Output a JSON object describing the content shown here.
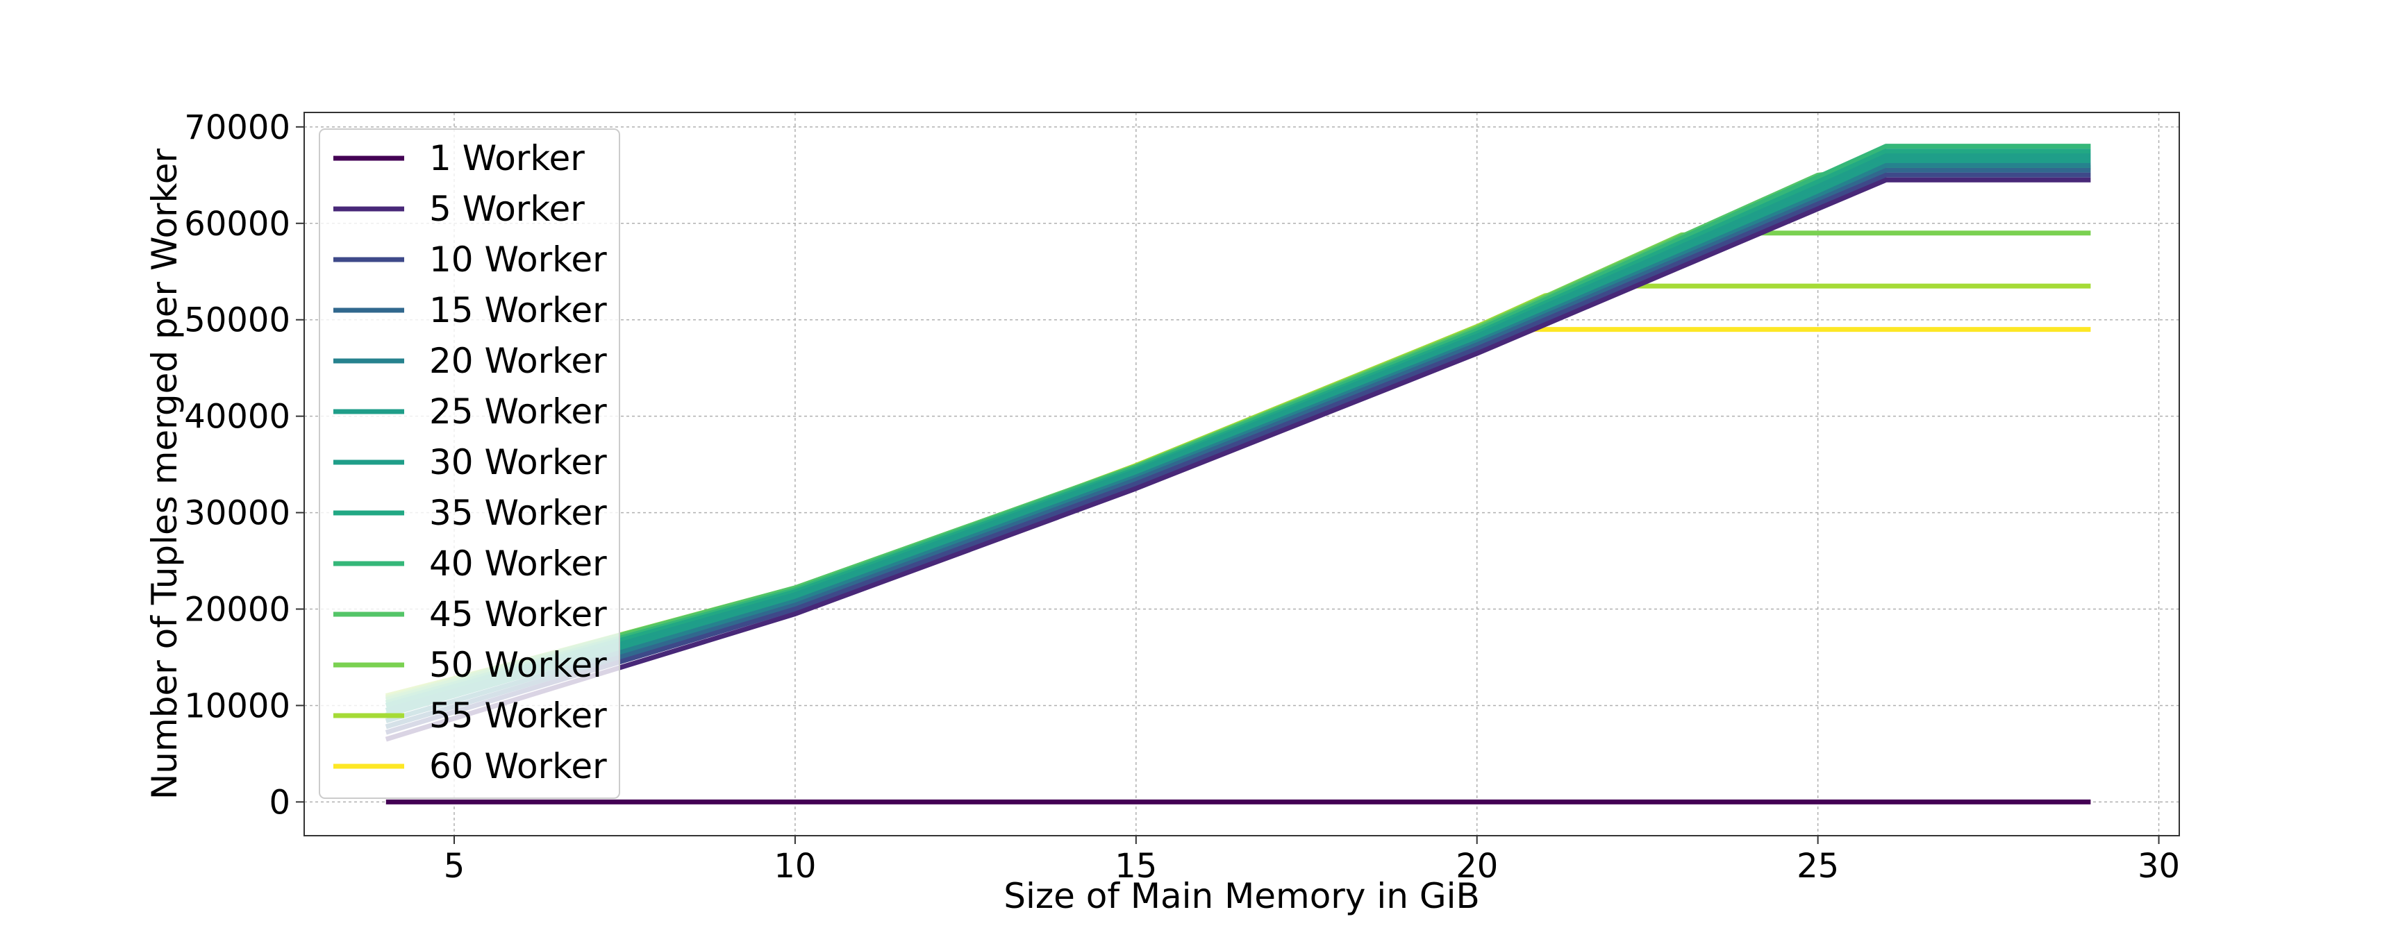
{
  "chart_data": {
    "type": "line",
    "title": "",
    "xlabel": "Size of Main Memory in GiB",
    "ylabel": "Number of Tuples merged per Worker",
    "xlim": [
      2.8,
      30.3
    ],
    "ylim": [
      -3500,
      71500
    ],
    "xticks": [
      5,
      10,
      15,
      20,
      25,
      30
    ],
    "yticks": [
      0,
      10000,
      20000,
      30000,
      40000,
      50000,
      60000,
      70000
    ],
    "grid": true,
    "legend_position": "upper-left",
    "colormap": "viridis",
    "series": [
      {
        "name": "1 Worker",
        "color": "#440154",
        "x": [
          4,
          29
        ],
        "y": [
          0,
          0
        ]
      },
      {
        "name": "5 Worker",
        "color": "#482878",
        "x": [
          4,
          10,
          15,
          20,
          25,
          26,
          29
        ],
        "y": [
          6500,
          19500,
          32500,
          46500,
          61500,
          64500,
          64500
        ]
      },
      {
        "name": "10 Worker",
        "color": "#3e4989",
        "x": [
          4,
          10,
          15,
          20,
          25,
          26,
          29
        ],
        "y": [
          7200,
          20000,
          33000,
          47000,
          62000,
          65000,
          65000
        ]
      },
      {
        "name": "15 Worker",
        "color": "#31688e",
        "x": [
          4,
          10,
          15,
          20,
          25,
          26,
          29
        ],
        "y": [
          7800,
          20400,
          33400,
          47400,
          62400,
          65500,
          65500
        ]
      },
      {
        "name": "20 Worker",
        "color": "#26828e",
        "x": [
          4,
          10,
          15,
          20,
          25,
          26,
          29
        ],
        "y": [
          8400,
          20800,
          33700,
          47700,
          62800,
          66000,
          66000
        ]
      },
      {
        "name": "25 Worker",
        "color": "#1f9e89",
        "x": [
          4,
          10,
          15,
          20,
          25,
          26,
          29
        ],
        "y": [
          9000,
          21200,
          34000,
          48000,
          63300,
          66500,
          66500
        ]
      },
      {
        "name": "30 Worker",
        "color": "#1f9e89",
        "x": [
          4,
          10,
          15,
          20,
          25,
          26,
          29
        ],
        "y": [
          9500,
          21500,
          34300,
          48300,
          63800,
          67000,
          67000
        ]
      },
      {
        "name": "35 Worker",
        "color": "#22a884",
        "x": [
          4,
          10,
          15,
          20,
          25,
          26,
          29
        ],
        "y": [
          10000,
          21800,
          34500,
          48600,
          64300,
          67500,
          67500
        ]
      },
      {
        "name": "40 Worker",
        "color": "#35b779",
        "x": [
          4,
          10,
          15,
          20,
          25,
          26,
          29
        ],
        "y": [
          10300,
          22000,
          34700,
          48900,
          64800,
          68000,
          68000
        ]
      },
      {
        "name": "45 Worker",
        "color": "#54c568",
        "x": [
          4,
          10,
          15,
          20,
          25,
          26,
          29
        ],
        "y": [
          10600,
          22200,
          34800,
          49100,
          65000,
          65800,
          65800
        ]
      },
      {
        "name": "50 Worker",
        "color": "#7ad151",
        "x": [
          4,
          10,
          15,
          20,
          23,
          24,
          29
        ],
        "y": [
          10800,
          22200,
          34800,
          49200,
          58800,
          59000,
          59000
        ]
      },
      {
        "name": "55 Worker",
        "color": "#a5db36",
        "x": [
          4,
          10,
          15,
          20,
          21,
          22,
          29
        ],
        "y": [
          11000,
          21800,
          34900,
          49300,
          52500,
          53500,
          53500
        ]
      },
      {
        "name": "60 Worker",
        "color": "#fde725",
        "x": [
          4,
          10,
          15,
          20,
          21,
          29
        ],
        "y": [
          10800,
          21000,
          34900,
          49000,
          49000,
          49000
        ]
      }
    ],
    "legend_colors": [
      "#440154",
      "#482878",
      "#3e4989",
      "#31688e",
      "#26828e",
      "#1f9e89",
      "#1f9e89",
      "#22a884",
      "#35b779",
      "#54c568",
      "#7ad151",
      "#a5db36",
      "#fde725"
    ]
  }
}
